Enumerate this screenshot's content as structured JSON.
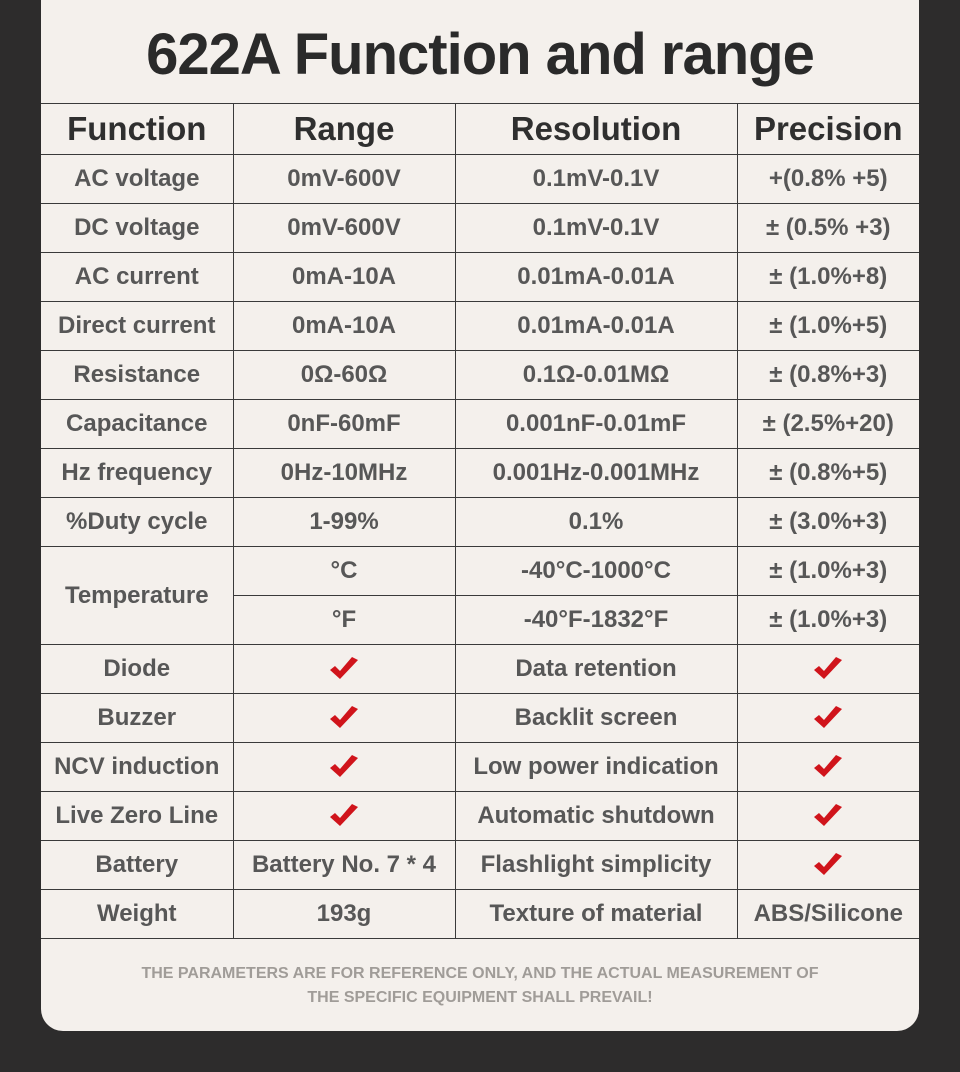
{
  "title": "622A Function and range",
  "headers": [
    "Function",
    "Range",
    "Resolution",
    "Precision"
  ],
  "rows": [
    {
      "function": "AC voltage",
      "range": "0mV-600V",
      "resolution": "0.1mV-0.1V",
      "precision": "+(0.8% +5)"
    },
    {
      "function": "DC voltage",
      "range": "0mV-600V",
      "resolution": "0.1mV-0.1V",
      "precision": "± (0.5% +3)"
    },
    {
      "function": "AC current",
      "range": "0mA-10A",
      "resolution": "0.01mA-0.01A",
      "precision": "± (1.0%+8)"
    },
    {
      "function": "Direct current",
      "range": "0mA-10A",
      "resolution": "0.01mA-0.01A",
      "precision": "± (1.0%+5)"
    },
    {
      "function": "Resistance",
      "range": "0Ω-60Ω",
      "resolution": "0.1Ω-0.01MΩ",
      "precision": "± (0.8%+3)"
    },
    {
      "function": "Capacitance",
      "range": "0nF-60mF",
      "resolution": "0.001nF-0.01mF",
      "precision": "± (2.5%+20)"
    },
    {
      "function": "Hz frequency",
      "range": "0Hz-10MHz",
      "resolution": "0.001Hz-0.001MHz",
      "precision": "± (0.8%+5)"
    },
    {
      "function": "%Duty cycle",
      "range": "1-99%",
      "resolution": "0.1%",
      "precision": "± (3.0%+3)"
    }
  ],
  "temperature": {
    "function": "Temperature",
    "celsius": {
      "range": "°C",
      "resolution": "-40°C-1000°C",
      "precision": "± (1.0%+3)"
    },
    "fahrenheit": {
      "range": "°F",
      "resolution": "-40°F-1832°F",
      "precision": "± (1.0%+3)"
    }
  },
  "features": [
    {
      "left": "Diode",
      "left_supported": true,
      "right": "Data retention",
      "right_supported": true
    },
    {
      "left": "Buzzer",
      "left_supported": true,
      "right": "Backlit screen",
      "right_supported": true
    },
    {
      "left": "NCV induction",
      "left_supported": true,
      "right": "Low power indication",
      "right_supported": true
    },
    {
      "left": "Live Zero Line",
      "left_supported": true,
      "right": "Automatic shutdown",
      "right_supported": true
    }
  ],
  "battery": {
    "label": "Battery",
    "value": "Battery No. 7 * 4",
    "right": "Flashlight simplicity",
    "right_supported": true
  },
  "weight": {
    "label": "Weight",
    "value": "193g",
    "right": "Texture of material",
    "right_value": "ABS/Silicone"
  },
  "note_lines": [
    "THE PARAMETERS ARE FOR REFERENCE ONLY, AND THE ACTUAL MEASUREMENT OF",
    "THE SPECIFIC EQUIPMENT SHALL PREVAIL!"
  ],
  "colors": {
    "check": "#d0141b",
    "background": "#2d2c2c",
    "card": "#f4f0ec",
    "text": "#575757"
  },
  "icons": {
    "check": "check-icon"
  }
}
